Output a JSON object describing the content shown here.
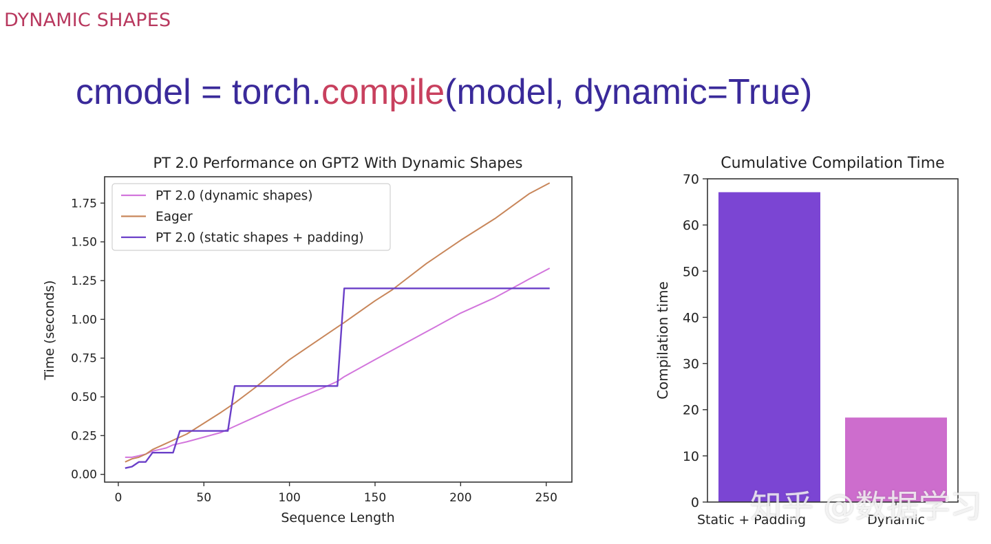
{
  "slide": {
    "section_title": "DYNAMIC SHAPES",
    "code": {
      "prefix": "cmodel = torch.",
      "function": "compile",
      "suffix": "(model, dynamic=True)"
    },
    "watermark": "知乎 @数据学习"
  },
  "colors": {
    "section_title": "#b8385e",
    "code_text": "#3a2a9a",
    "code_function": "#c8405e",
    "dynamic_series": "#d275dc",
    "eager_series": "#c8865a",
    "static_series": "#6a3fc8",
    "bar_static": "#7b45d3",
    "bar_dynamic": "#cd6dcd"
  },
  "chart_data": [
    {
      "type": "line",
      "title": "PT 2.0 Performance on GPT2 With Dynamic Shapes",
      "xlabel": "Sequence Length",
      "ylabel": "Time (seconds)",
      "xlim": [
        -8,
        265
      ],
      "ylim": [
        -0.05,
        1.92
      ],
      "xticks": [
        "0",
        "50",
        "100",
        "150",
        "200",
        "250"
      ],
      "yticks": [
        "0.00",
        "0.25",
        "0.50",
        "0.75",
        "1.00",
        "1.25",
        "1.50",
        "1.75"
      ],
      "grid": false,
      "legend_position": "upper left",
      "x": [
        4,
        8,
        12,
        16,
        20,
        24,
        28,
        32,
        36,
        40,
        50,
        60,
        64,
        68,
        80,
        100,
        120,
        128,
        132,
        150,
        160,
        180,
        200,
        220,
        240,
        252
      ],
      "series": [
        {
          "name": "PT 2.0 (dynamic shapes)",
          "values": [
            0.11,
            0.11,
            0.12,
            0.13,
            0.15,
            0.16,
            0.17,
            0.19,
            0.2,
            0.21,
            0.24,
            0.27,
            0.29,
            0.31,
            0.37,
            0.47,
            0.56,
            0.6,
            0.63,
            0.74,
            0.8,
            0.92,
            1.04,
            1.14,
            1.26,
            1.33
          ]
        },
        {
          "name": "Eager",
          "values": [
            0.08,
            0.1,
            0.11,
            0.13,
            0.16,
            0.18,
            0.2,
            0.22,
            0.24,
            0.26,
            0.33,
            0.4,
            0.43,
            0.46,
            0.56,
            0.74,
            0.89,
            0.95,
            0.98,
            1.12,
            1.19,
            1.36,
            1.51,
            1.65,
            1.81,
            1.88
          ]
        },
        {
          "name": "PT 2.0 (static shapes + padding)",
          "values": [
            0.04,
            0.05,
            0.08,
            0.08,
            0.14,
            0.14,
            0.14,
            0.14,
            0.28,
            0.28,
            0.28,
            0.28,
            0.28,
            0.57,
            0.57,
            0.57,
            0.57,
            0.57,
            1.2,
            1.2,
            1.2,
            1.2,
            1.2,
            1.2,
            1.2,
            1.2
          ]
        }
      ]
    },
    {
      "type": "bar",
      "title": "Cumulative Compilation Time",
      "xlabel": "",
      "ylabel": "Compilation time",
      "ylim": [
        0,
        70
      ],
      "yticks": [
        "0",
        "10",
        "20",
        "30",
        "40",
        "50",
        "60",
        "70"
      ],
      "categories": [
        "Static + Padding",
        "Dynamic"
      ],
      "values": [
        67.1,
        18.3
      ],
      "grid": false
    }
  ]
}
